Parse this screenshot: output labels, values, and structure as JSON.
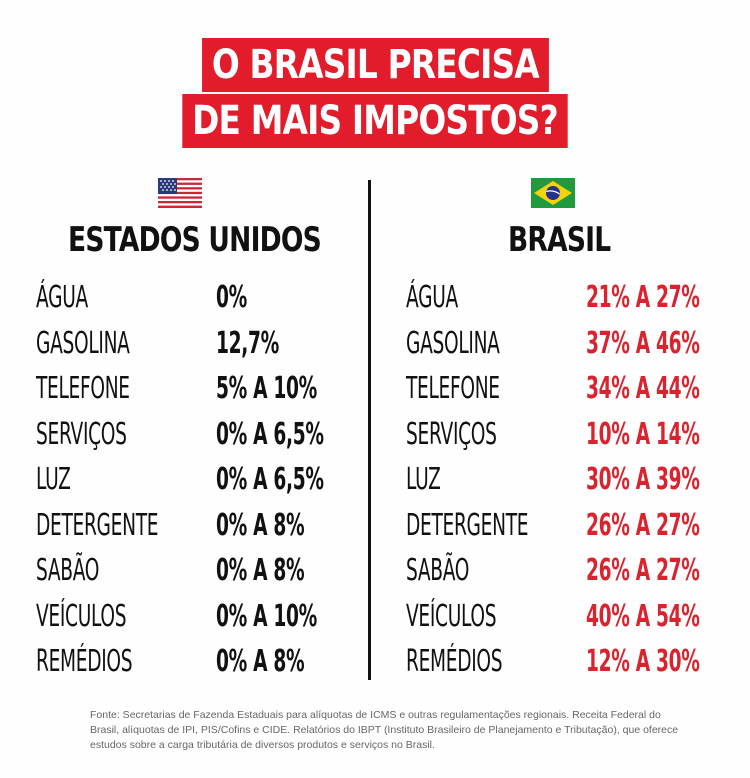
{
  "title": {
    "line1": "O BRASIL PRECISA",
    "line2": "DE MAIS IMPOSTOS?"
  },
  "colors": {
    "title_bg": "#e21c2a",
    "brasil_values": "#d9232e",
    "text": "#111111"
  },
  "usa": {
    "flag_icon": "us-flag-icon",
    "name": "ESTADOS UNIDOS",
    "rows": [
      {
        "item": "ÁGUA",
        "value": "0%"
      },
      {
        "item": "GASOLINA",
        "value": "12,7%"
      },
      {
        "item": "TELEFONE",
        "value": "5% A 10%"
      },
      {
        "item": "SERVIÇOS",
        "value": "0% A 6,5%"
      },
      {
        "item": "LUZ",
        "value": "0% A 6,5%"
      },
      {
        "item": "DETERGENTE",
        "value": "0% A 8%"
      },
      {
        "item": "SABÃO",
        "value": "0% A 8%"
      },
      {
        "item": "VEÍCULOS",
        "value": "0% A 10%"
      },
      {
        "item": "REMÉDIOS",
        "value": "0% A 8%"
      }
    ]
  },
  "brasil": {
    "flag_icon": "brazil-flag-icon",
    "name": "BRASIL",
    "rows": [
      {
        "item": "ÁGUA",
        "value": "21% A 27%"
      },
      {
        "item": "GASOLINA",
        "value": "37% A 46%"
      },
      {
        "item": "TELEFONE",
        "value": "34% A 44%"
      },
      {
        "item": "SERVIÇOS",
        "value": "10% A 14%"
      },
      {
        "item": "LUZ",
        "value": "30% A 39%"
      },
      {
        "item": "DETERGENTE",
        "value": "26% A 27%"
      },
      {
        "item": "SABÃO",
        "value": "26% A 27%"
      },
      {
        "item": "VEÍCULOS",
        "value": "40% A 54%"
      },
      {
        "item": "REMÉDIOS",
        "value": "12% A 30%"
      }
    ]
  },
  "footnote": "Fonte: Secretarias de Fazenda Estaduais para alíquotas de ICMS e outras regulamentações regionais. Receita Federal do Brasil, alíquotas de IPI, PIS/Cofins e CIDE. Relatórios do IBPT (Instituto Brasileiro de Planejamento e Tributação), que oferece estudos sobre a carga tributária de diversos produtos e serviços no Brasil."
}
